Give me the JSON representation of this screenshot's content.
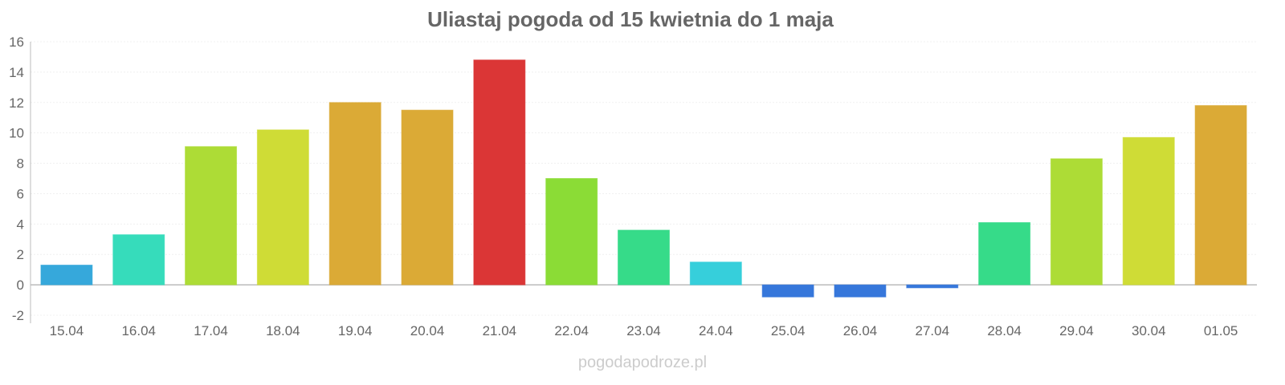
{
  "chart_data": {
    "type": "bar",
    "title": "Uliastaj pogoda od 15 kwietnia do 1 maja",
    "xlabel": "",
    "ylabel": "",
    "ylim": [
      -2,
      16
    ],
    "yticks": [
      "-2",
      "0",
      "2",
      "4",
      "6",
      "8",
      "10",
      "12",
      "14",
      "16"
    ],
    "grid": true,
    "categories": [
      "15.04",
      "16.04",
      "17.04",
      "18.04",
      "19.04",
      "20.04",
      "21.04",
      "22.04",
      "23.04",
      "24.04",
      "25.04",
      "26.04",
      "27.04",
      "28.04",
      "29.04",
      "30.04",
      "01.05"
    ],
    "values": [
      1.3,
      3.3,
      9.1,
      10.2,
      12.0,
      11.5,
      14.8,
      7.0,
      3.6,
      1.5,
      -0.8,
      -0.8,
      -0.2,
      4.1,
      8.3,
      9.7,
      11.8
    ],
    "colors": [
      "#36a8db",
      "#36dcbb",
      "#addc36",
      "#cfdc36",
      "#dbaa36",
      "#dbaa36",
      "#db3636",
      "#8bdc36",
      "#36db89",
      "#36cfdb",
      "#3677db",
      "#3677db",
      "#3677db",
      "#36db89",
      "#addc36",
      "#cfdc36",
      "#dbaa36"
    ]
  },
  "watermark": "pogodapodroze.pl"
}
